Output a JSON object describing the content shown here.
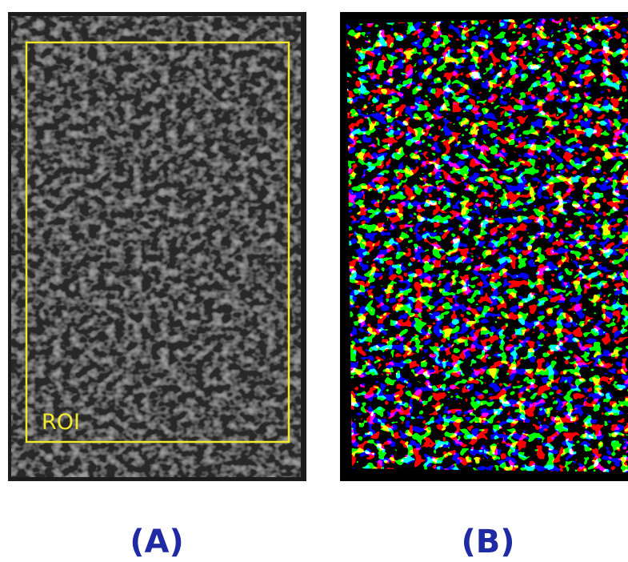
{
  "panels": [
    {
      "label": "(A)",
      "roi_label": "ROI"
    },
    {
      "label": "(B)"
    }
  ]
}
